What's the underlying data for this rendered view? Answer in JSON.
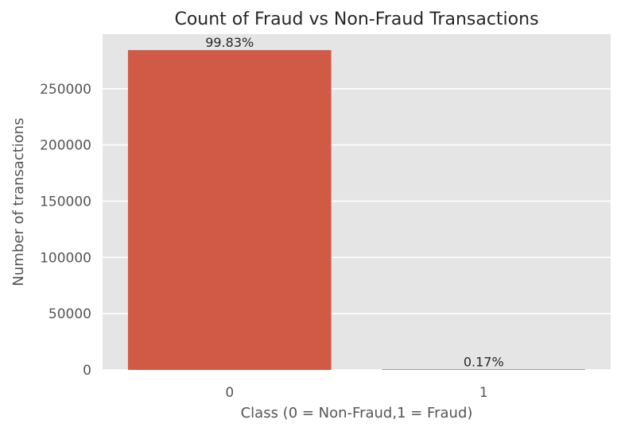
{
  "chart_data": {
    "type": "bar",
    "title": "Count of Fraud vs Non-Fraud Transactions",
    "xlabel": "Class (0 = Non-Fraud,1 = Fraud)",
    "ylabel": "Number of transactions",
    "categories": [
      "0",
      "1"
    ],
    "values": [
      284315,
      492
    ],
    "data_labels": [
      "99.83%",
      "0.17%"
    ],
    "ylim": [
      0,
      298531
    ],
    "yticks": [
      0,
      50000,
      100000,
      150000,
      200000,
      250000
    ],
    "ytick_labels": [
      "0",
      "50000",
      "100000",
      "150000",
      "200000",
      "250000"
    ],
    "grid": true,
    "legend": "none",
    "colors": {
      "bar": "#d05a45",
      "plot_background": "#e5e5e5",
      "grid": "#ffffff",
      "text": "#555555",
      "title": "#262626"
    }
  }
}
